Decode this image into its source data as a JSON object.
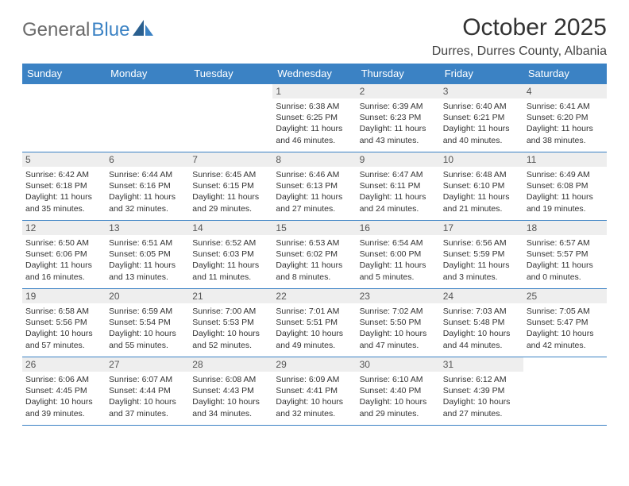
{
  "logo": {
    "text1": "General",
    "text2": "Blue"
  },
  "title": "October 2025",
  "location": "Durres, Durres County, Albania",
  "daysOfWeek": [
    "Sunday",
    "Monday",
    "Tuesday",
    "Wednesday",
    "Thursday",
    "Friday",
    "Saturday"
  ],
  "colors": {
    "headerBg": "#3b82c4",
    "headerText": "#ffffff",
    "dayBg": "#eeeeee",
    "border": "#3b82c4",
    "text": "#333333",
    "logoGray": "#6b6b6b",
    "logoBlue": "#3b82c4"
  },
  "weeks": [
    [
      {
        "day": "",
        "sunrise": "",
        "sunset": "",
        "daylight1": "",
        "daylight2": "",
        "empty": true
      },
      {
        "day": "",
        "sunrise": "",
        "sunset": "",
        "daylight1": "",
        "daylight2": "",
        "empty": true
      },
      {
        "day": "",
        "sunrise": "",
        "sunset": "",
        "daylight1": "",
        "daylight2": "",
        "empty": true
      },
      {
        "day": "1",
        "sunrise": "Sunrise: 6:38 AM",
        "sunset": "Sunset: 6:25 PM",
        "daylight1": "Daylight: 11 hours",
        "daylight2": "and 46 minutes."
      },
      {
        "day": "2",
        "sunrise": "Sunrise: 6:39 AM",
        "sunset": "Sunset: 6:23 PM",
        "daylight1": "Daylight: 11 hours",
        "daylight2": "and 43 minutes."
      },
      {
        "day": "3",
        "sunrise": "Sunrise: 6:40 AM",
        "sunset": "Sunset: 6:21 PM",
        "daylight1": "Daylight: 11 hours",
        "daylight2": "and 40 minutes."
      },
      {
        "day": "4",
        "sunrise": "Sunrise: 6:41 AM",
        "sunset": "Sunset: 6:20 PM",
        "daylight1": "Daylight: 11 hours",
        "daylight2": "and 38 minutes."
      }
    ],
    [
      {
        "day": "5",
        "sunrise": "Sunrise: 6:42 AM",
        "sunset": "Sunset: 6:18 PM",
        "daylight1": "Daylight: 11 hours",
        "daylight2": "and 35 minutes."
      },
      {
        "day": "6",
        "sunrise": "Sunrise: 6:44 AM",
        "sunset": "Sunset: 6:16 PM",
        "daylight1": "Daylight: 11 hours",
        "daylight2": "and 32 minutes."
      },
      {
        "day": "7",
        "sunrise": "Sunrise: 6:45 AM",
        "sunset": "Sunset: 6:15 PM",
        "daylight1": "Daylight: 11 hours",
        "daylight2": "and 29 minutes."
      },
      {
        "day": "8",
        "sunrise": "Sunrise: 6:46 AM",
        "sunset": "Sunset: 6:13 PM",
        "daylight1": "Daylight: 11 hours",
        "daylight2": "and 27 minutes."
      },
      {
        "day": "9",
        "sunrise": "Sunrise: 6:47 AM",
        "sunset": "Sunset: 6:11 PM",
        "daylight1": "Daylight: 11 hours",
        "daylight2": "and 24 minutes."
      },
      {
        "day": "10",
        "sunrise": "Sunrise: 6:48 AM",
        "sunset": "Sunset: 6:10 PM",
        "daylight1": "Daylight: 11 hours",
        "daylight2": "and 21 minutes."
      },
      {
        "day": "11",
        "sunrise": "Sunrise: 6:49 AM",
        "sunset": "Sunset: 6:08 PM",
        "daylight1": "Daylight: 11 hours",
        "daylight2": "and 19 minutes."
      }
    ],
    [
      {
        "day": "12",
        "sunrise": "Sunrise: 6:50 AM",
        "sunset": "Sunset: 6:06 PM",
        "daylight1": "Daylight: 11 hours",
        "daylight2": "and 16 minutes."
      },
      {
        "day": "13",
        "sunrise": "Sunrise: 6:51 AM",
        "sunset": "Sunset: 6:05 PM",
        "daylight1": "Daylight: 11 hours",
        "daylight2": "and 13 minutes."
      },
      {
        "day": "14",
        "sunrise": "Sunrise: 6:52 AM",
        "sunset": "Sunset: 6:03 PM",
        "daylight1": "Daylight: 11 hours",
        "daylight2": "and 11 minutes."
      },
      {
        "day": "15",
        "sunrise": "Sunrise: 6:53 AM",
        "sunset": "Sunset: 6:02 PM",
        "daylight1": "Daylight: 11 hours",
        "daylight2": "and 8 minutes."
      },
      {
        "day": "16",
        "sunrise": "Sunrise: 6:54 AM",
        "sunset": "Sunset: 6:00 PM",
        "daylight1": "Daylight: 11 hours",
        "daylight2": "and 5 minutes."
      },
      {
        "day": "17",
        "sunrise": "Sunrise: 6:56 AM",
        "sunset": "Sunset: 5:59 PM",
        "daylight1": "Daylight: 11 hours",
        "daylight2": "and 3 minutes."
      },
      {
        "day": "18",
        "sunrise": "Sunrise: 6:57 AM",
        "sunset": "Sunset: 5:57 PM",
        "daylight1": "Daylight: 11 hours",
        "daylight2": "and 0 minutes."
      }
    ],
    [
      {
        "day": "19",
        "sunrise": "Sunrise: 6:58 AM",
        "sunset": "Sunset: 5:56 PM",
        "daylight1": "Daylight: 10 hours",
        "daylight2": "and 57 minutes."
      },
      {
        "day": "20",
        "sunrise": "Sunrise: 6:59 AM",
        "sunset": "Sunset: 5:54 PM",
        "daylight1": "Daylight: 10 hours",
        "daylight2": "and 55 minutes."
      },
      {
        "day": "21",
        "sunrise": "Sunrise: 7:00 AM",
        "sunset": "Sunset: 5:53 PM",
        "daylight1": "Daylight: 10 hours",
        "daylight2": "and 52 minutes."
      },
      {
        "day": "22",
        "sunrise": "Sunrise: 7:01 AM",
        "sunset": "Sunset: 5:51 PM",
        "daylight1": "Daylight: 10 hours",
        "daylight2": "and 49 minutes."
      },
      {
        "day": "23",
        "sunrise": "Sunrise: 7:02 AM",
        "sunset": "Sunset: 5:50 PM",
        "daylight1": "Daylight: 10 hours",
        "daylight2": "and 47 minutes."
      },
      {
        "day": "24",
        "sunrise": "Sunrise: 7:03 AM",
        "sunset": "Sunset: 5:48 PM",
        "daylight1": "Daylight: 10 hours",
        "daylight2": "and 44 minutes."
      },
      {
        "day": "25",
        "sunrise": "Sunrise: 7:05 AM",
        "sunset": "Sunset: 5:47 PM",
        "daylight1": "Daylight: 10 hours",
        "daylight2": "and 42 minutes."
      }
    ],
    [
      {
        "day": "26",
        "sunrise": "Sunrise: 6:06 AM",
        "sunset": "Sunset: 4:45 PM",
        "daylight1": "Daylight: 10 hours",
        "daylight2": "and 39 minutes."
      },
      {
        "day": "27",
        "sunrise": "Sunrise: 6:07 AM",
        "sunset": "Sunset: 4:44 PM",
        "daylight1": "Daylight: 10 hours",
        "daylight2": "and 37 minutes."
      },
      {
        "day": "28",
        "sunrise": "Sunrise: 6:08 AM",
        "sunset": "Sunset: 4:43 PM",
        "daylight1": "Daylight: 10 hours",
        "daylight2": "and 34 minutes."
      },
      {
        "day": "29",
        "sunrise": "Sunrise: 6:09 AM",
        "sunset": "Sunset: 4:41 PM",
        "daylight1": "Daylight: 10 hours",
        "daylight2": "and 32 minutes."
      },
      {
        "day": "30",
        "sunrise": "Sunrise: 6:10 AM",
        "sunset": "Sunset: 4:40 PM",
        "daylight1": "Daylight: 10 hours",
        "daylight2": "and 29 minutes."
      },
      {
        "day": "31",
        "sunrise": "Sunrise: 6:12 AM",
        "sunset": "Sunset: 4:39 PM",
        "daylight1": "Daylight: 10 hours",
        "daylight2": "and 27 minutes."
      },
      {
        "day": "",
        "sunrise": "",
        "sunset": "",
        "daylight1": "",
        "daylight2": "",
        "empty": true
      }
    ]
  ]
}
